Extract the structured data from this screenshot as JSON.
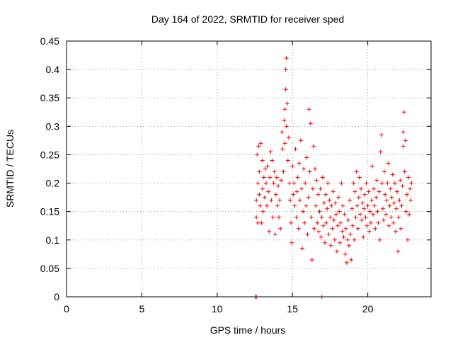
{
  "chart_data": {
    "type": "scatter",
    "title": "Day 164 of 2022, SRMTID for receiver sped",
    "xlabel": "GPS time / hours",
    "ylabel": "SRMTID / TECUs",
    "xlim": [
      0,
      24.2
    ],
    "ylim": [
      0,
      0.45
    ],
    "xticks": [
      0,
      5,
      10,
      15,
      20
    ],
    "yticks": [
      0,
      0.05,
      0.1,
      0.15,
      0.2,
      0.25,
      0.3,
      0.35,
      0.4,
      0.45
    ],
    "grid": true,
    "marker": "+",
    "color": "#ff0000",
    "series": [
      {
        "name": "SRMTID",
        "points": [
          [
            12.55,
            0.0
          ],
          [
            12.6,
            0.0
          ],
          [
            16.95,
            0.0
          ],
          [
            12.6,
            0.14
          ],
          [
            12.6,
            0.17
          ],
          [
            12.65,
            0.25
          ],
          [
            12.7,
            0.2
          ],
          [
            12.7,
            0.13
          ],
          [
            12.75,
            0.265
          ],
          [
            12.8,
            0.22
          ],
          [
            12.8,
            0.18
          ],
          [
            12.85,
            0.16
          ],
          [
            12.9,
            0.27
          ],
          [
            12.95,
            0.13
          ],
          [
            13.0,
            0.24
          ],
          [
            13.0,
            0.19
          ],
          [
            13.05,
            0.15
          ],
          [
            13.1,
            0.21
          ],
          [
            13.15,
            0.175
          ],
          [
            13.2,
            0.225
          ],
          [
            13.25,
            0.2
          ],
          [
            13.3,
            0.16
          ],
          [
            13.35,
            0.23
          ],
          [
            13.4,
            0.185
          ],
          [
            13.45,
            0.115
          ],
          [
            13.5,
            0.21
          ],
          [
            13.55,
            0.255
          ],
          [
            13.6,
            0.17
          ],
          [
            13.65,
            0.24
          ],
          [
            13.7,
            0.14
          ],
          [
            13.75,
            0.2
          ],
          [
            13.8,
            0.22
          ],
          [
            13.85,
            0.11
          ],
          [
            13.9,
            0.18
          ],
          [
            13.95,
            0.21
          ],
          [
            14.0,
            0.16
          ],
          [
            14.05,
            0.195
          ],
          [
            14.1,
            0.14
          ],
          [
            14.15,
            0.17
          ],
          [
            14.2,
            0.12
          ],
          [
            14.25,
            0.205
          ],
          [
            14.3,
            0.29
          ],
          [
            14.35,
            0.26
          ],
          [
            14.4,
            0.22
          ],
          [
            14.45,
            0.31
          ],
          [
            14.5,
            0.33
          ],
          [
            14.5,
            0.27
          ],
          [
            14.55,
            0.365
          ],
          [
            14.55,
            0.4
          ],
          [
            14.6,
            0.42
          ],
          [
            14.6,
            0.3
          ],
          [
            14.65,
            0.34
          ],
          [
            14.7,
            0.24
          ],
          [
            14.75,
            0.28
          ],
          [
            14.8,
            0.2
          ],
          [
            14.85,
            0.17
          ],
          [
            14.9,
            0.13
          ],
          [
            14.95,
            0.095
          ],
          [
            15.0,
            0.23
          ],
          [
            15.05,
            0.18
          ],
          [
            15.1,
            0.2
          ],
          [
            15.15,
            0.16
          ],
          [
            15.2,
            0.26
          ],
          [
            15.25,
            0.14
          ],
          [
            15.3,
            0.185
          ],
          [
            15.35,
            0.21
          ],
          [
            15.4,
            0.12
          ],
          [
            15.45,
            0.235
          ],
          [
            15.5,
            0.17
          ],
          [
            15.55,
            0.275
          ],
          [
            15.6,
            0.19
          ],
          [
            15.65,
            0.085
          ],
          [
            15.7,
            0.15
          ],
          [
            15.75,
            0.225
          ],
          [
            15.8,
            0.13
          ],
          [
            15.85,
            0.2
          ],
          [
            15.9,
            0.16
          ],
          [
            15.95,
            0.245
          ],
          [
            16.0,
            0.11
          ],
          [
            16.05,
            0.175
          ],
          [
            16.1,
            0.33
          ],
          [
            16.15,
            0.22
          ],
          [
            16.2,
            0.305
          ],
          [
            16.25,
            0.14
          ],
          [
            16.3,
            0.065
          ],
          [
            16.35,
            0.19
          ],
          [
            16.4,
            0.265
          ],
          [
            16.45,
            0.12
          ],
          [
            16.5,
            0.225
          ],
          [
            16.55,
            0.16
          ],
          [
            16.6,
            0.205
          ],
          [
            16.65,
            0.13
          ],
          [
            16.7,
            0.18
          ],
          [
            16.75,
            0.115
          ],
          [
            16.8,
            0.15
          ],
          [
            16.85,
            0.19
          ],
          [
            16.9,
            0.105
          ],
          [
            16.95,
            0.14
          ],
          [
            17.0,
            0.21
          ],
          [
            17.05,
            0.125
          ],
          [
            17.1,
            0.165
          ],
          [
            17.15,
            0.095
          ],
          [
            17.2,
            0.18
          ],
          [
            17.25,
            0.13
          ],
          [
            17.3,
            0.155
          ],
          [
            17.35,
            0.2
          ],
          [
            17.4,
            0.11
          ],
          [
            17.45,
            0.17
          ],
          [
            17.5,
            0.14
          ],
          [
            17.55,
            0.09
          ],
          [
            17.6,
            0.16
          ],
          [
            17.65,
            0.12
          ],
          [
            17.7,
            0.185
          ],
          [
            17.75,
            0.135
          ],
          [
            17.8,
            0.1
          ],
          [
            17.85,
            0.165
          ],
          [
            17.9,
            0.145
          ],
          [
            17.95,
            0.08
          ],
          [
            18.0,
            0.125
          ],
          [
            18.05,
            0.175
          ],
          [
            18.1,
            0.15
          ],
          [
            18.15,
            0.095
          ],
          [
            18.2,
            0.13
          ],
          [
            18.25,
            0.2
          ],
          [
            18.3,
            0.115
          ],
          [
            18.35,
            0.16
          ],
          [
            18.4,
            0.105
          ],
          [
            18.45,
            0.145
          ],
          [
            18.5,
            0.075
          ],
          [
            18.55,
            0.12
          ],
          [
            18.6,
            0.06
          ],
          [
            18.65,
            0.1
          ],
          [
            18.7,
            0.135
          ],
          [
            18.75,
            0.09
          ],
          [
            18.8,
            0.17
          ],
          [
            18.85,
            0.11
          ],
          [
            18.9,
            0.065
          ],
          [
            18.95,
            0.155
          ],
          [
            19.0,
            0.125
          ],
          [
            19.05,
            0.2
          ],
          [
            19.1,
            0.1
          ],
          [
            19.15,
            0.185
          ],
          [
            19.2,
            0.14
          ],
          [
            19.25,
            0.22
          ],
          [
            19.3,
            0.16
          ],
          [
            19.35,
            0.12
          ],
          [
            19.4,
            0.175
          ],
          [
            19.45,
            0.21
          ],
          [
            19.5,
            0.145
          ],
          [
            19.55,
            0.19
          ],
          [
            19.6,
            0.135
          ],
          [
            19.65,
            0.165
          ],
          [
            19.7,
            0.105
          ],
          [
            19.75,
            0.155
          ],
          [
            19.8,
            0.18
          ],
          [
            19.85,
            0.14
          ],
          [
            19.9,
            0.2
          ],
          [
            19.95,
            0.125
          ],
          [
            20.0,
            0.16
          ],
          [
            20.05,
            0.185
          ],
          [
            20.1,
            0.115
          ],
          [
            20.15,
            0.15
          ],
          [
            20.2,
            0.13
          ],
          [
            20.25,
            0.17
          ],
          [
            20.3,
            0.23
          ],
          [
            20.35,
            0.145
          ],
          [
            20.4,
            0.19
          ],
          [
            20.45,
            0.16
          ],
          [
            20.5,
            0.12
          ],
          [
            20.55,
            0.175
          ],
          [
            20.6,
            0.205
          ],
          [
            20.65,
            0.15
          ],
          [
            20.7,
            0.13
          ],
          [
            20.75,
            0.185
          ],
          [
            20.8,
            0.1
          ],
          [
            20.85,
            0.255
          ],
          [
            20.9,
            0.285
          ],
          [
            20.95,
            0.2
          ],
          [
            21.0,
            0.155
          ],
          [
            21.05,
            0.135
          ],
          [
            21.1,
            0.22
          ],
          [
            21.15,
            0.18
          ],
          [
            21.2,
            0.145
          ],
          [
            21.25,
            0.17
          ],
          [
            21.3,
            0.2
          ],
          [
            21.35,
            0.235
          ],
          [
            21.4,
            0.125
          ],
          [
            21.45,
            0.16
          ],
          [
            21.5,
            0.19
          ],
          [
            21.55,
            0.14
          ],
          [
            21.6,
            0.175
          ],
          [
            21.65,
            0.215
          ],
          [
            21.7,
            0.13
          ],
          [
            21.75,
            0.165
          ],
          [
            21.8,
            0.2
          ],
          [
            21.85,
            0.115
          ],
          [
            21.9,
            0.155
          ],
          [
            21.95,
            0.185
          ],
          [
            22.0,
            0.08
          ],
          [
            22.05,
            0.14
          ],
          [
            22.1,
            0.17
          ],
          [
            22.15,
            0.205
          ],
          [
            22.2,
            0.12
          ],
          [
            22.25,
            0.16
          ],
          [
            22.3,
            0.195
          ],
          [
            22.35,
            0.265
          ],
          [
            22.35,
            0.29
          ],
          [
            22.4,
            0.325
          ],
          [
            22.45,
            0.22
          ],
          [
            22.5,
            0.275
          ],
          [
            22.55,
            0.15
          ],
          [
            22.6,
            0.18
          ],
          [
            22.65,
            0.1
          ],
          [
            22.7,
            0.21
          ],
          [
            22.75,
            0.145
          ],
          [
            22.8,
            0.19
          ],
          [
            22.85,
            0.17
          ],
          [
            22.9,
            0.2
          ]
        ]
      }
    ]
  }
}
